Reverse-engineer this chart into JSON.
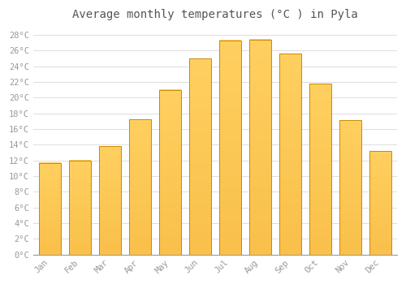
{
  "title": "Average monthly temperatures (°C ) in Pyla",
  "months": [
    "Jan",
    "Feb",
    "Mar",
    "Apr",
    "May",
    "Jun",
    "Jul",
    "Aug",
    "Sep",
    "Oct",
    "Nov",
    "Dec"
  ],
  "values": [
    11.7,
    12.0,
    13.8,
    17.2,
    21.0,
    25.0,
    27.3,
    27.4,
    25.6,
    21.8,
    17.1,
    13.2
  ],
  "bar_color_top": "#FFB833",
  "bar_color_bottom": "#FFA020",
  "bar_edge_color": "#CC8800",
  "ylim": [
    0,
    29
  ],
  "ytick_step": 2,
  "background_color": "#ffffff",
  "plot_bg_color": "#ffffff",
  "grid_color": "#dddddd",
  "title_fontsize": 10,
  "tick_fontsize": 7.5,
  "tick_color": "#999999",
  "title_color": "#555555",
  "font_family": "monospace"
}
